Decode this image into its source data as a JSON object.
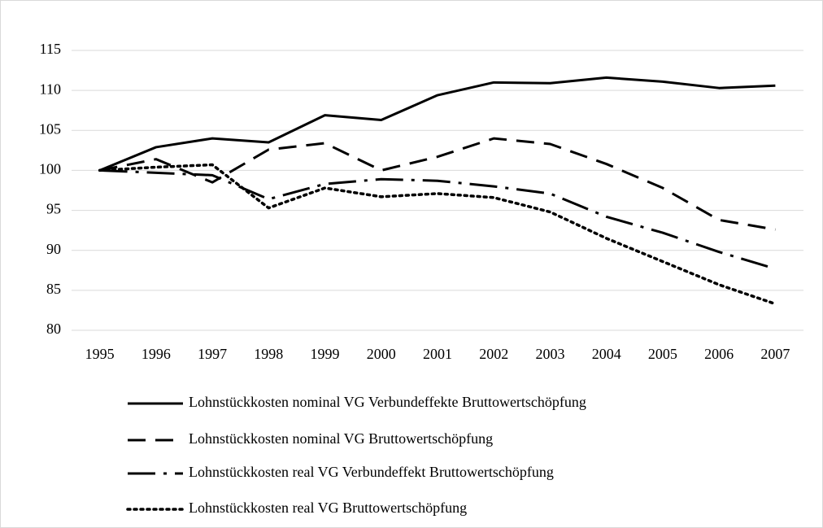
{
  "chart_data": {
    "type": "line",
    "categories": [
      "1995",
      "1996",
      "1997",
      "1998",
      "1999",
      "2000",
      "2001",
      "2002",
      "2003",
      "2004",
      "2005",
      "2006",
      "2007"
    ],
    "series": [
      {
        "name": "Lohnstückkosten nominal VG Verbundeffekte Bruttowertschöpfung",
        "color": "#000000",
        "dash": "solid",
        "values": [
          100,
          102.9,
          104,
          103.5,
          106.9,
          106.3,
          109.4,
          111,
          110.9,
          111.6,
          111.1,
          110.3,
          110.6
        ]
      },
      {
        "name": "Lohnstückkosten nominal VG Bruttowertschöpfung",
        "color": "#000000",
        "dash": "dash",
        "values": [
          100,
          101.4,
          98.5,
          102.6,
          103.4,
          100,
          101.7,
          104,
          103.3,
          100.8,
          97.8,
          93.8,
          92.6
        ]
      },
      {
        "name": "Lohnstückkosten real VG Verbundeffekt Bruttowertschöpfung",
        "color": "#000000",
        "dash": "longdash",
        "values": [
          100,
          99.7,
          99.4,
          96.4,
          98.3,
          98.9,
          98.7,
          98,
          97.1,
          94.2,
          92.2,
          89.8,
          87.7
        ]
      },
      {
        "name": "Lohnstückkosten real VG Bruttowertschöpfung",
        "color": "#000000",
        "dash": "dot",
        "values": [
          100,
          100.4,
          100.7,
          95.3,
          97.8,
          96.7,
          97.1,
          96.6,
          94.8,
          91.5,
          88.6,
          85.7,
          83.3
        ]
      }
    ],
    "ylim": [
      80,
      115
    ],
    "yticks": [
      80,
      85,
      90,
      95,
      100,
      105,
      110,
      115
    ],
    "grid": true,
    "legend": "bottom"
  }
}
